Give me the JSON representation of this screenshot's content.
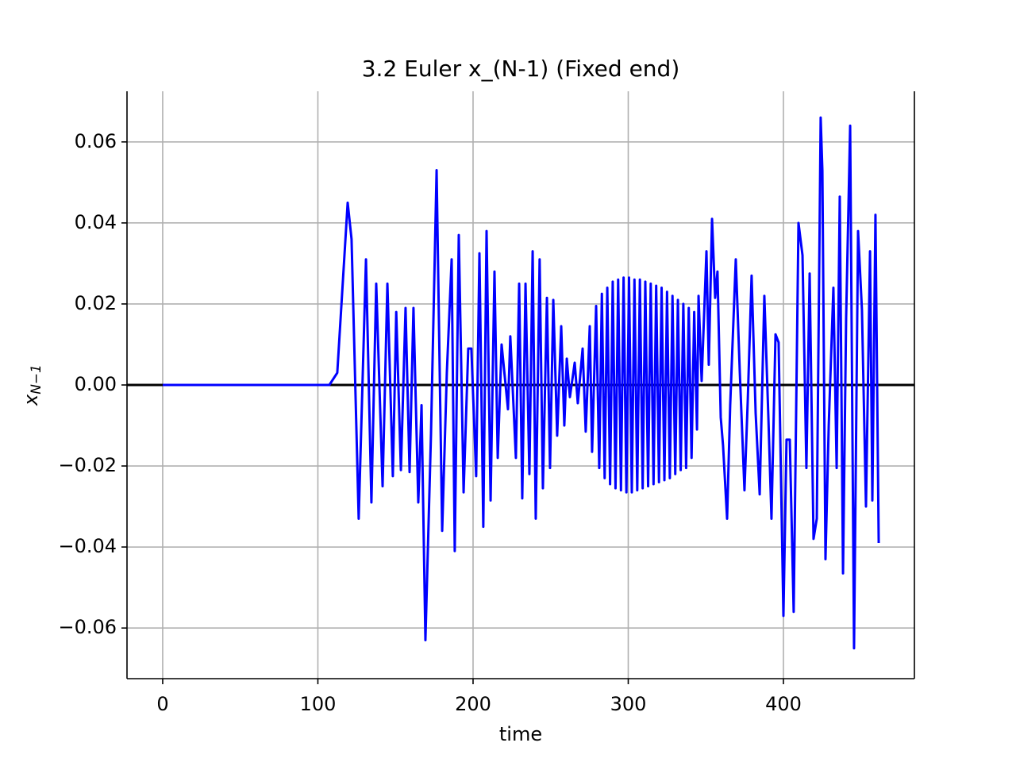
{
  "chart_data": {
    "type": "line",
    "title": "3.2 Euler x_(N-1) (Fixed end)",
    "xlabel": "time",
    "ylabel": {
      "base": "x",
      "sub": "N−1"
    },
    "x": [
      0,
      107.4,
      112.5,
      119.2,
      121.7,
      126.3,
      131,
      134.5,
      137.6,
      141.7,
      144.8,
      148.3,
      150.5,
      153.5,
      156.5,
      159.1,
      161.6,
      164.7,
      166.8,
      169.3,
      172.9,
      176.5,
      180.1,
      183.1,
      186.2,
      188.2,
      190.8,
      193.9,
      196.9,
      198.9,
      202,
      204.1,
      206.6,
      208.7,
      211.3,
      213.8,
      215.9,
      218.4,
      222.5,
      224,
      227.6,
      229.7,
      231.7,
      233.8,
      236.3,
      238.4,
      240.4,
      242.9,
      245,
      247.6,
      249.6,
      251.7,
      254.2,
      256.8,
      258.8,
      260.4,
      262.4,
      265.5,
      267.5,
      270.6,
      272.6,
      275.2,
      276.7,
      279.3,
      281.3,
      283,
      284.8,
      286.5,
      288.3,
      290,
      291.8,
      293.5,
      295.3,
      297,
      298.8,
      300.5,
      302.3,
      304,
      305.8,
      307.5,
      309.3,
      311,
      312.8,
      314.5,
      316.3,
      318,
      319.8,
      321.5,
      323.3,
      325,
      326.8,
      328.5,
      330.3,
      332,
      333.8,
      335.5,
      337.3,
      339,
      340.8,
      342.5,
      344.3,
      345.3,
      347.3,
      350.4,
      351.9,
      354,
      356,
      357.5,
      359.6,
      361.1,
      363.7,
      365.7,
      369.3,
      371.9,
      374.9,
      377,
      379.5,
      382.1,
      384.7,
      387.7,
      390.3,
      392.3,
      394.9,
      396.9,
      400,
      402,
      404.1,
      406.6,
      409.7,
      412.3,
      414.8,
      416.9,
      419.4,
      421.5,
      424,
      425.1,
      427.1,
      429.2,
      432.2,
      434.3,
      436.3,
      438.4,
      440.4,
      443,
      445.5,
      448.1,
      450.6,
      453.2,
      455.8,
      457.3,
      459.3,
      461.4
    ],
    "series": [
      {
        "name": "x_(N-1)",
        "color": "#0000ff",
        "values": [
          0,
          0,
          0.003,
          0.045,
          0.036,
          -0.033,
          0.031,
          -0.029,
          0.025,
          -0.025,
          0.025,
          -0.0225,
          0.018,
          -0.021,
          0.019,
          -0.0215,
          0.019,
          -0.029,
          -0.005,
          -0.063,
          -0.012,
          0.053,
          -0.036,
          0.003,
          0.031,
          -0.041,
          0.037,
          -0.0265,
          0.009,
          0.009,
          -0.0225,
          0.0325,
          -0.035,
          0.038,
          -0.0285,
          0.028,
          -0.018,
          0.01,
          -0.006,
          0.012,
          -0.018,
          0.025,
          -0.028,
          0.025,
          -0.022,
          0.033,
          -0.033,
          0.031,
          -0.0255,
          0.0215,
          -0.0205,
          0.021,
          -0.0125,
          0.0145,
          -0.01,
          0.0065,
          -0.003,
          0.0055,
          -0.0045,
          0.009,
          -0.0115,
          0.0145,
          -0.0165,
          0.0195,
          -0.0205,
          0.0225,
          -0.023,
          0.024,
          -0.0245,
          0.0255,
          -0.0255,
          0.026,
          -0.026,
          0.0265,
          -0.0265,
          0.0265,
          -0.0265,
          0.026,
          -0.026,
          0.026,
          -0.0255,
          0.0255,
          -0.025,
          0.025,
          -0.0245,
          0.0245,
          -0.024,
          0.024,
          -0.0235,
          0.023,
          -0.023,
          0.022,
          -0.022,
          0.021,
          -0.021,
          0.02,
          -0.0205,
          0.019,
          -0.018,
          0.018,
          -0.011,
          0.022,
          0.001,
          0.033,
          0.005,
          0.041,
          0.0215,
          0.028,
          -0.008,
          -0.015,
          -0.033,
          -0.005,
          0.031,
          0.003,
          -0.026,
          -0.004,
          0.027,
          -0.007,
          -0.027,
          0.022,
          -0.008,
          -0.033,
          0.0125,
          0.0105,
          -0.057,
          -0.0135,
          -0.0135,
          -0.056,
          0.04,
          0.032,
          -0.0205,
          0.0275,
          -0.038,
          -0.033,
          0.066,
          0.053,
          -0.043,
          -0.01,
          0.024,
          -0.0205,
          0.0465,
          -0.0465,
          0.0165,
          0.064,
          -0.065,
          0.038,
          0.0185,
          -0.03,
          0.033,
          -0.0285,
          0.042,
          -0.039
        ]
      }
    ],
    "xlim": [
      -23,
      484.4
    ],
    "ylim": [
      -0.0725,
      0.0725
    ],
    "xticks": [
      0,
      100,
      200,
      300,
      400
    ],
    "yticks": [
      {
        "value": -0.06,
        "label": "−0.06"
      },
      {
        "value": -0.04,
        "label": "−0.04"
      },
      {
        "value": -0.02,
        "label": "−0.02"
      },
      {
        "value": 0,
        "label": "0.00"
      },
      0.02,
      0.04,
      0.06
    ],
    "hline": 0,
    "grid": true
  }
}
